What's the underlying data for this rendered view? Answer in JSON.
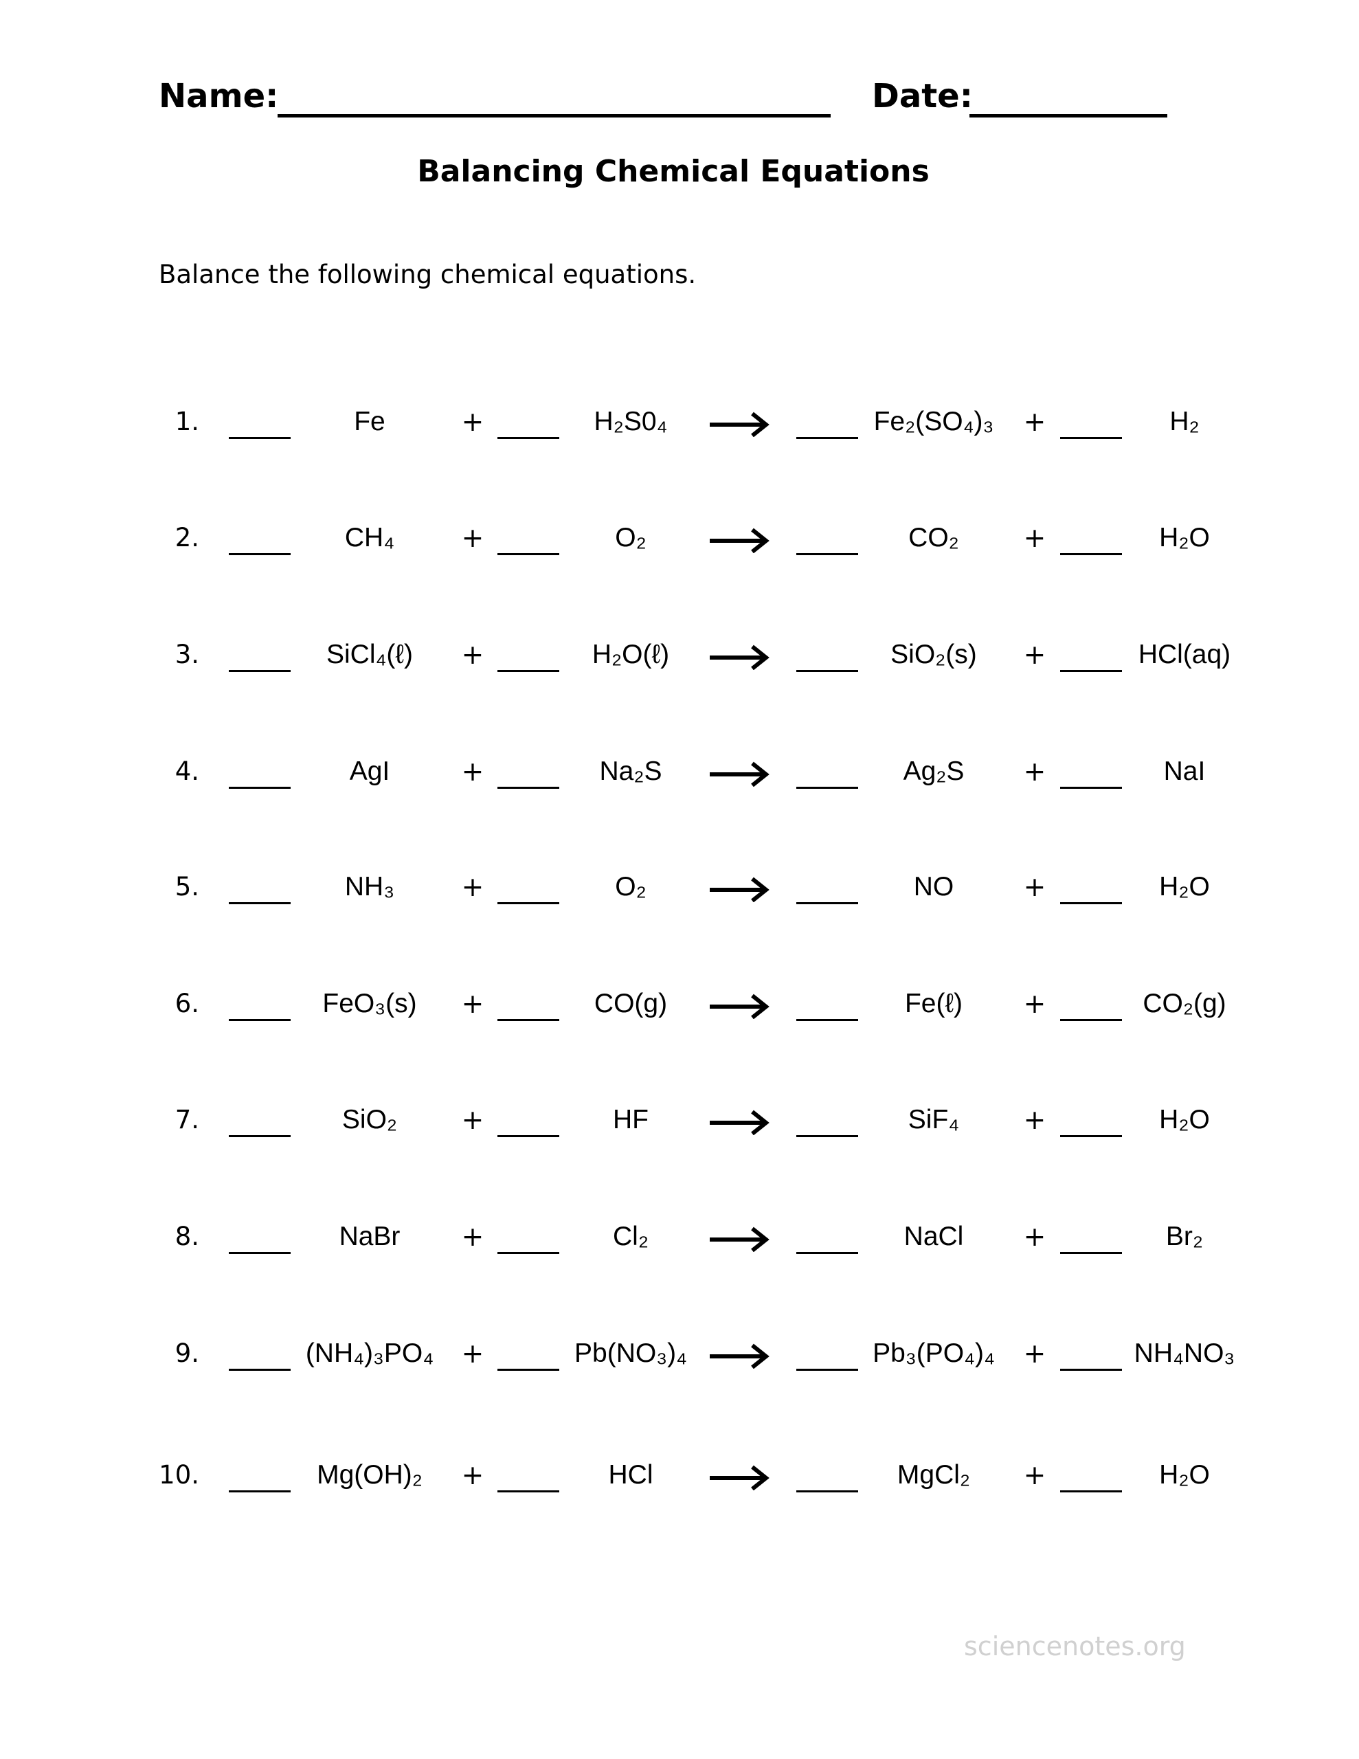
{
  "header": {
    "name_label": "Name:",
    "date_label": "Date:"
  },
  "title": "Balancing Chemical Equations",
  "instructions": "Balance the following chemical equations.",
  "equations": [
    {
      "number": "1.",
      "r1": "Fe",
      "r2": "H₂S0₄",
      "p1": "Fe₂(SO₄)₃",
      "p2": "H₂"
    },
    {
      "number": "2.",
      "r1": "CH₄",
      "r2": "O₂",
      "p1": "CO₂",
      "p2": "H₂O"
    },
    {
      "number": "3.",
      "r1": "SiCl₄(ℓ)",
      "r2": "H₂O(ℓ)",
      "p1": "SiO₂(s)",
      "p2": "HCl(aq)"
    },
    {
      "number": "4.",
      "r1": "AgI",
      "r2": "Na₂S",
      "p1": "Ag₂S",
      "p2": "NaI"
    },
    {
      "number": "5.",
      "r1": "NH₃",
      "r2": "O₂",
      "p1": "NO",
      "p2": "H₂O"
    },
    {
      "number": "6.",
      "r1": "FeO₃(s)",
      "r2": "CO(g)",
      "p1": "Fe(ℓ)",
      "p2": "CO₂(g)"
    },
    {
      "number": "7.",
      "r1": "SiO₂",
      "r2": "HF",
      "p1": "SiF₄",
      "p2": "H₂O"
    },
    {
      "number": "8.",
      "r1": "NaBr",
      "r2": "Cl₂",
      "p1": "NaCl",
      "p2": "Br₂"
    },
    {
      "number": "9.",
      "r1": "(NH₄)₃PO₄",
      "r2": "Pb(NO₃)₄",
      "p1": "Pb₃(PO₄)₄",
      "p2": "NH₄NO₃"
    },
    {
      "number": "10.",
      "r1": "Mg(OH)₂",
      "r2": "HCl",
      "p1": "MgCl₂",
      "p2": "H₂O"
    }
  ],
  "plus_sign": "+",
  "watermark": "sciencenotes.org"
}
